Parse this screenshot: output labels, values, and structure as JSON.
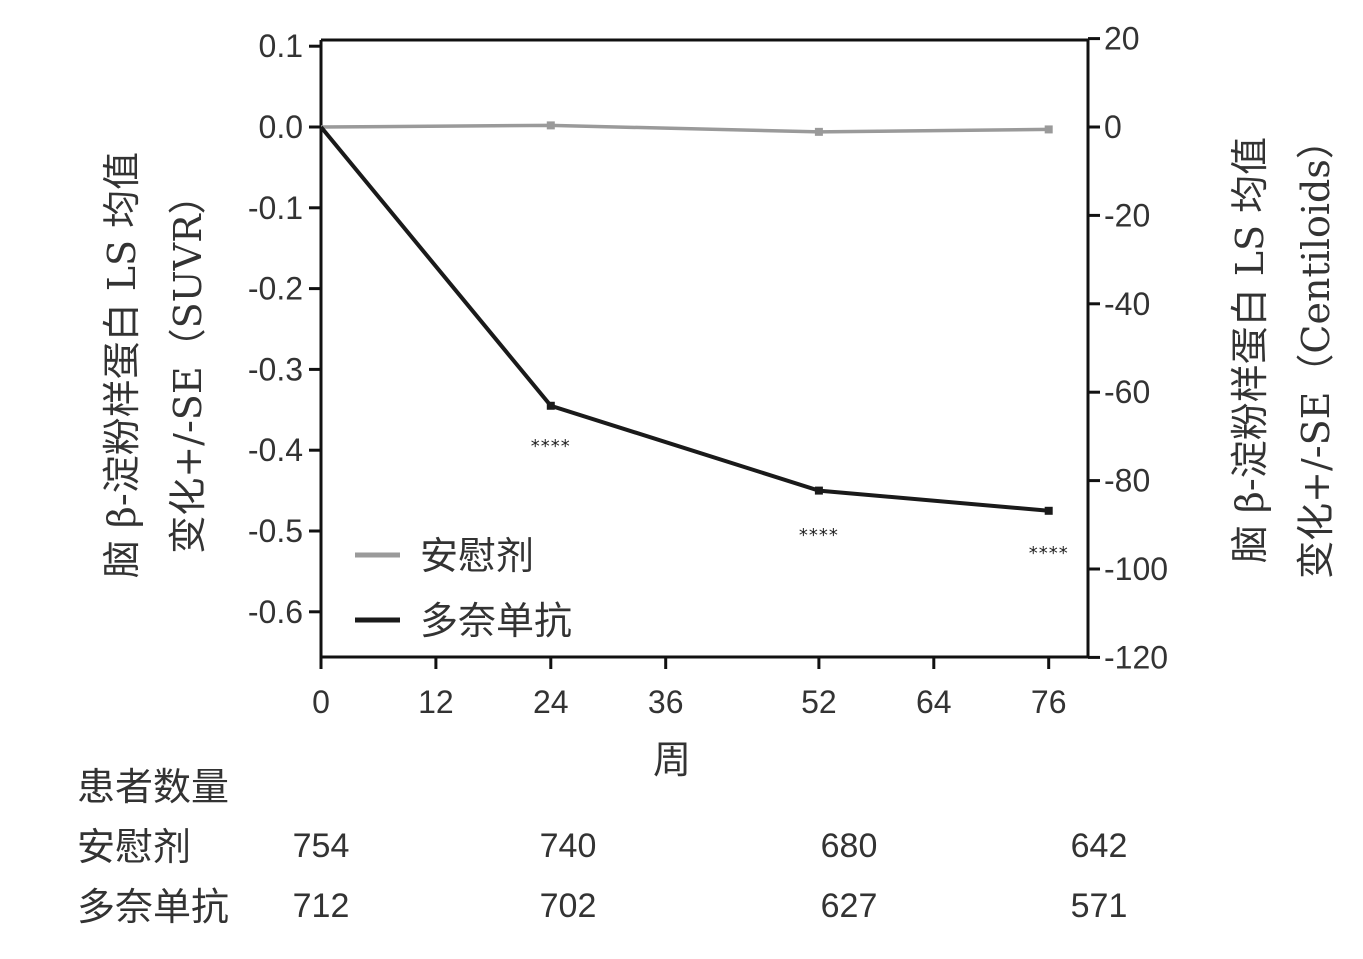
{
  "chart_data": {
    "type": "line",
    "xlabel": "周",
    "ylabel_left": [
      "脑 β-淀粉样蛋白 LS 均值",
      "变化+/-SE（SUVR）"
    ],
    "ylabel_right": [
      "脑 β-淀粉样蛋白 LS 均值",
      "变化+/-SE（Centiloids）"
    ],
    "x_ticks": [
      0,
      12,
      24,
      36,
      52,
      64,
      76
    ],
    "y_left_ticks": [
      "0.1",
      "0.0",
      "-0.1",
      "-0.2",
      "-0.3",
      "-0.4",
      "-0.5",
      "-0.6"
    ],
    "y_left_values": [
      0.1,
      0.0,
      -0.1,
      -0.2,
      -0.3,
      -0.4,
      -0.5,
      -0.6
    ],
    "y_right_ticks": [
      "20",
      "0",
      "-20",
      "-40",
      "-60",
      "-80",
      "-100",
      "-120"
    ],
    "y_right_values": [
      20,
      0,
      -20,
      -40,
      -60,
      -80,
      -100,
      -120
    ],
    "ylim_left": [
      -0.656,
      0.107
    ],
    "ylim_right": [
      -120,
      20
    ],
    "xlim": [
      0,
      80
    ],
    "legend_position": "bottom-left",
    "series": [
      {
        "name": "安慰剂",
        "color": "#9a9a9a",
        "x": [
          0,
          24,
          52,
          76
        ],
        "y": [
          0.0,
          0.002,
          -0.006,
          -0.003
        ]
      },
      {
        "name": "多奈单抗",
        "color": "#1a1a1a",
        "x": [
          0,
          24,
          52,
          76
        ],
        "y": [
          0.0,
          -0.345,
          -0.45,
          -0.475
        ]
      }
    ],
    "annotations": [
      {
        "text": "****",
        "x": 24,
        "y": -0.39
      },
      {
        "text": "****",
        "x": 52,
        "y": -0.5
      },
      {
        "text": "****",
        "x": 76,
        "y": -0.522
      }
    ]
  },
  "patients_table": {
    "title": "患者数量",
    "rows": [
      {
        "label": "安慰剂",
        "values": [
          "754",
          "740",
          "680",
          "642"
        ]
      },
      {
        "label": "多奈单抗",
        "values": [
          "712",
          "702",
          "627",
          "571"
        ]
      }
    ],
    "weeks": [
      0,
      24,
      52,
      76
    ]
  }
}
